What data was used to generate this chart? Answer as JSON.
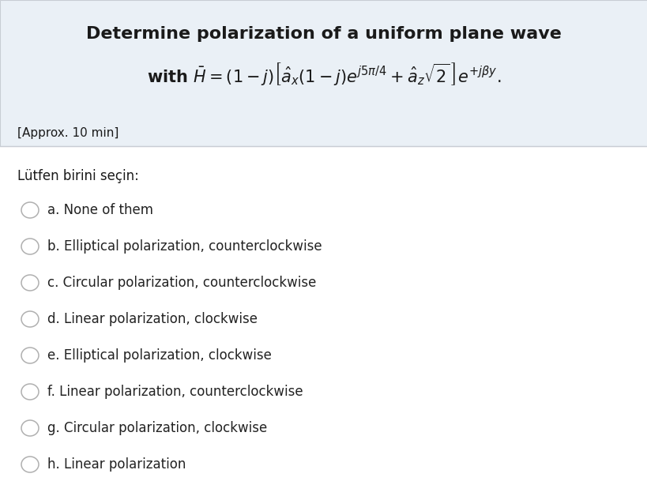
{
  "title_line1": "Determine polarization of a uniform plane wave",
  "title_line2": "with $\\bar{H} =(1-j)\\left[\\hat{a}_x(1-j)e^{j5\\pi/4} +\\hat{a}_z\\sqrt{2}\\,\\right]e^{+j\\beta y}.$",
  "approx_text": "[Approx. 10 min]",
  "prompt_text": "Lütfen birini seçin:",
  "options": [
    "a. None of them",
    "b. Elliptical polarization, counterclockwise",
    "c. Circular polarization, counterclockwise",
    "d. Linear polarization, clockwise",
    "e. Elliptical polarization, clockwise",
    "f. Linear polarization, counterclockwise",
    "g. Circular polarization, clockwise",
    "h. Linear polarization"
  ],
  "bg_header": "#EAF0F6",
  "bg_main": "#FFFFFF",
  "text_color": "#1a1a1a",
  "option_color": "#222222",
  "circle_edge_color": "#b0b0b0",
  "circle_fill_color": "#ffffff",
  "header_border_color": "#c8cdd4",
  "font_size_title1": 16,
  "font_size_title2": 15,
  "font_size_approx": 11,
  "font_size_prompt": 12,
  "font_size_options": 12
}
